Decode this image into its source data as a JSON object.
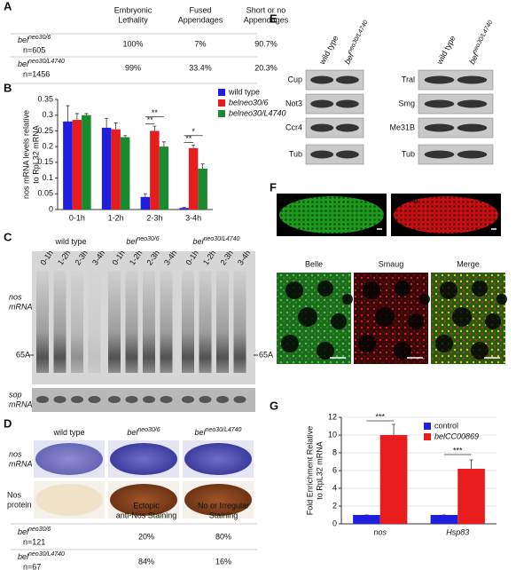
{
  "panel_labels": [
    "A",
    "B",
    "C",
    "D",
    "E",
    "F",
    "G"
  ],
  "panel_a": {
    "headers": [
      [
        "Embryonic",
        "Lethality"
      ],
      [
        "Fused",
        "Appendages"
      ],
      [
        "Short or no",
        "Appendages"
      ]
    ],
    "rows": [
      {
        "genotype": {
          "base": "bel",
          "sup": "neo30/6"
        },
        "n": "n=605",
        "cells": [
          "100%",
          "7%",
          "90.7%"
        ]
      },
      {
        "genotype": {
          "base": "bel",
          "sup": "neo30/L4740"
        },
        "n": "n=1456",
        "cells": [
          "99%",
          "33.4%",
          "20.3%"
        ]
      }
    ]
  },
  "panel_c": {
    "groups": [
      {
        "label": {
          "base": "wild type",
          "sup": ""
        },
        "lanes": [
          "0-1h",
          "1-2h",
          "2-3h",
          "3-4h"
        ]
      },
      {
        "label": {
          "base": "bel",
          "sup": "neo30/6"
        },
        "lanes": [
          "0-1h",
          "1-2h",
          "2-3h",
          "3-4h"
        ]
      },
      {
        "label": {
          "base": "bel",
          "sup": "neo30/L4740"
        },
        "lanes": [
          "0-1h",
          "1-2h",
          "2-3h",
          "3-4h"
        ]
      }
    ],
    "nos_label": [
      "nos",
      "mRNA"
    ],
    "marker_left": "65A",
    "marker_right": "65A",
    "sop_label": [
      "sop",
      "mRNA"
    ]
  },
  "panel_d": {
    "columns": [
      {
        "base": "wild type",
        "sup": ""
      },
      {
        "base": "bel",
        "sup": "neo30/6"
      },
      {
        "base": "bel",
        "sup": "neo30/L4740"
      }
    ],
    "row_labels": [
      [
        "nos",
        "mRNA"
      ],
      [
        "Nos",
        "protein"
      ]
    ],
    "table": {
      "headers": [
        [
          "Ectopic",
          "anti-Nos Staining"
        ],
        [
          "No or Irregular",
          "Staining"
        ]
      ],
      "rows": [
        {
          "genotype": {
            "base": "bel",
            "sup": "neo30/6"
          },
          "n": "n=121",
          "cells": [
            "20%",
            "80%"
          ]
        },
        {
          "genotype": {
            "base": "bel",
            "sup": "neo30/L4740"
          },
          "n": "n=67",
          "cells": [
            "84%",
            "16%"
          ]
        }
      ]
    }
  },
  "panel_e": {
    "blots": [
      {
        "wild_type": "wild type",
        "mutant": {
          "base": "bel",
          "sup": "neo30/L4740"
        },
        "rows": [
          "Cup",
          "Not3",
          "Ccr4",
          "Tub"
        ]
      },
      {
        "wild_type": "wild type",
        "mutant": {
          "base": "bel",
          "sup": "neo30/L4740"
        },
        "rows": [
          "Tral",
          "Smg",
          "Me31B",
          "Tub"
        ]
      }
    ]
  },
  "panel_f": {
    "top": [
      "Belle",
      "Smaug"
    ],
    "bottom": [
      "Belle",
      "Smaug",
      "Merge"
    ]
  },
  "chart_data": [
    {
      "type": "bar",
      "y_label": [
        "nos mRNA levels relative",
        "to RpL32 mRNA"
      ],
      "categories": [
        "0-1h",
        "1-2h",
        "2-3h",
        "3-4h"
      ],
      "series": [
        {
          "name": "wild type",
          "color": "#1f1fe0",
          "values": [
            0.28,
            0.26,
            0.04,
            0.005
          ],
          "errors": [
            0.05,
            0.03,
            0.01,
            0.002
          ]
        },
        {
          "name": "belneo30/6",
          "color": "#e81c1c",
          "values": [
            0.285,
            0.255,
            0.25,
            0.195
          ],
          "errors": [
            0.02,
            0.02,
            0.015,
            0.01
          ]
        },
        {
          "name": "belneo30/L4740",
          "color": "#1a8a2e",
          "values": [
            0.3,
            0.23,
            0.2,
            0.13
          ],
          "errors": [
            0.005,
            0.005,
            0.015,
            0.015
          ]
        }
      ],
      "ylim": [
        0,
        0.35
      ],
      "yticks": [
        0,
        0.05,
        0.1,
        0.15,
        0.2,
        0.25,
        0.3,
        0.35
      ],
      "grid": false,
      "annotations": [
        "**",
        "**",
        "*",
        "**"
      ]
    },
    {
      "type": "bar",
      "y_label": [
        "Fold Enrichment Relative",
        "to RpL32 mRNA"
      ],
      "categories": [
        "nos",
        "Hsp83"
      ],
      "series": [
        {
          "name": "control",
          "color": "#1f1fe0",
          "values": [
            1,
            1
          ],
          "errors": [
            0,
            0
          ]
        },
        {
          "name": "belCC00869",
          "color": "#e81c1c",
          "values": [
            10,
            6.2
          ],
          "errors": [
            1.2,
            1.0
          ]
        }
      ],
      "ylim": [
        0,
        12
      ],
      "yticks": [
        0,
        2,
        4,
        6,
        8,
        10,
        12
      ],
      "grid": true,
      "annotations": [
        "***",
        "***"
      ]
    }
  ]
}
